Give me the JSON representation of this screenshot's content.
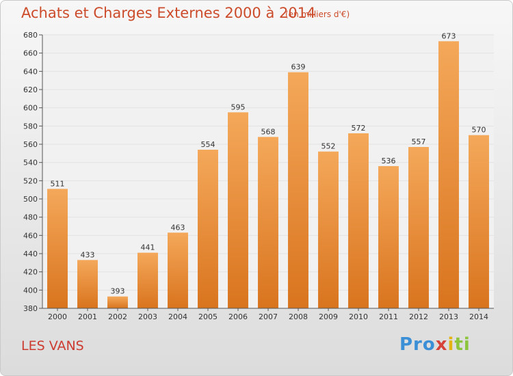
{
  "header": {
    "title": "Achats et Charges Externes 2000 à 2014",
    "subtitle": "(en milliers d'€)"
  },
  "footer": {
    "place": "LES VANS",
    "logo_parts": [
      "Pro",
      "x",
      "i",
      "ti"
    ]
  },
  "colors": {
    "title": "#cc4b2a",
    "bar_top": "#f4a85a",
    "bar_bottom": "#d9741e",
    "grid": "#e2e2e2",
    "axis": "#555555",
    "logo_blue": "#3a8fd6",
    "logo_yellow": "#e4b312",
    "logo_red": "#d6423a",
    "logo_green": "#8cc43c"
  },
  "chart_data": {
    "type": "bar",
    "title": "Achats et Charges Externes 2000 à 2014",
    "subtitle": "(en milliers d'€)",
    "categories": [
      "2000",
      "2001",
      "2002",
      "2003",
      "2004",
      "2005",
      "2006",
      "2007",
      "2008",
      "2009",
      "2010",
      "2011",
      "2012",
      "2013",
      "2014"
    ],
    "values": [
      511,
      433,
      393,
      441,
      463,
      554,
      595,
      568,
      639,
      552,
      572,
      536,
      557,
      673,
      570
    ],
    "ylim": [
      380,
      680
    ],
    "yticks": [
      380,
      400,
      420,
      440,
      460,
      480,
      500,
      520,
      540,
      560,
      580,
      600,
      620,
      640,
      660,
      680
    ],
    "grid": true,
    "data_labels": true
  }
}
